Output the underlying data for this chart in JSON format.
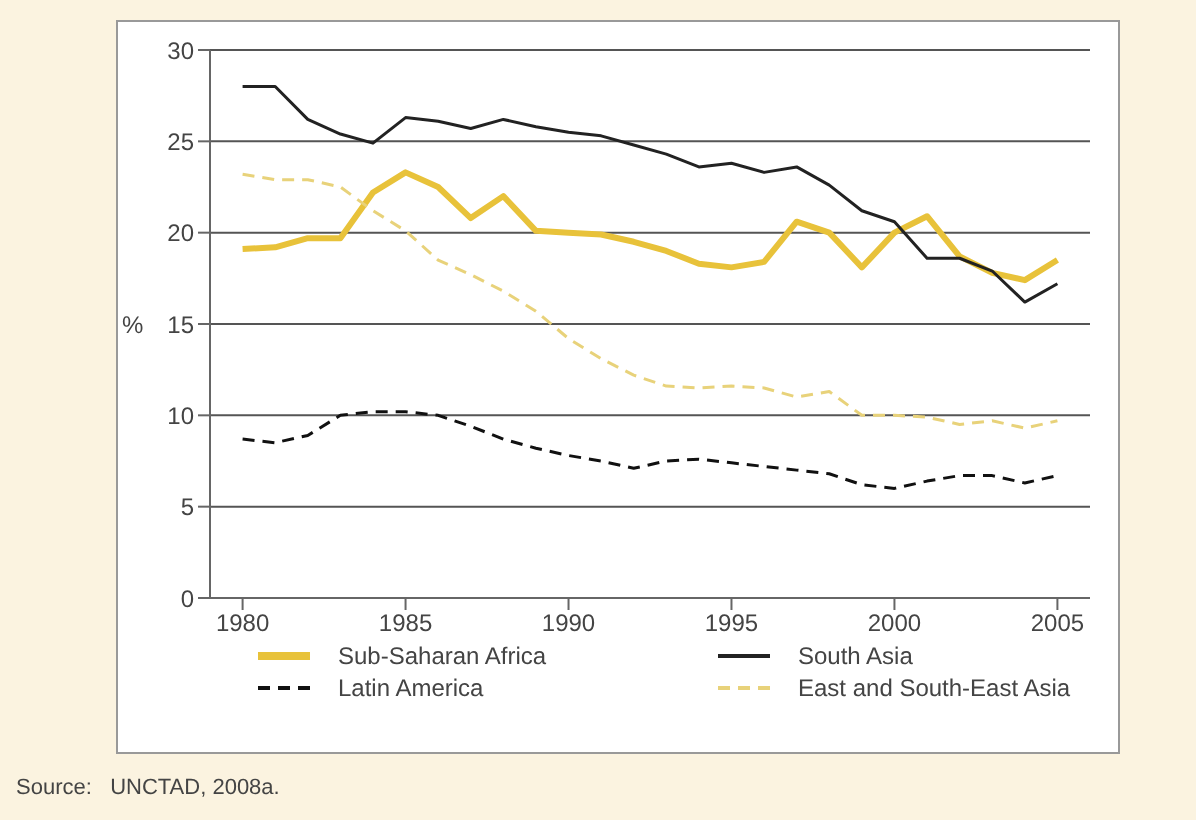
{
  "chart_data": {
    "type": "line",
    "ylabel": "%",
    "x": [
      1980,
      1981,
      1982,
      1983,
      1984,
      1985,
      1986,
      1987,
      1988,
      1989,
      1990,
      1991,
      1992,
      1993,
      1994,
      1995,
      1996,
      1997,
      1998,
      1999,
      2000,
      2001,
      2002,
      2003,
      2004,
      2005
    ],
    "xlim": [
      1979,
      2006
    ],
    "xticks": [
      1980,
      1985,
      1990,
      1995,
      2000,
      2005
    ],
    "ylim": [
      0,
      30
    ],
    "yticks": [
      0,
      5,
      10,
      15,
      20,
      25,
      30
    ],
    "grid": "y",
    "legend": "bottom",
    "marker": "none",
    "series": [
      {
        "name": "Sub-Saharan Africa",
        "color": "#e8c23a",
        "line_style": "solid",
        "values": [
          19.1,
          19.2,
          19.7,
          19.7,
          22.2,
          23.3,
          22.5,
          20.8,
          22.0,
          20.1,
          20.0,
          19.9,
          19.5,
          19.0,
          18.3,
          18.1,
          18.4,
          20.6,
          20.0,
          18.1,
          20.0,
          20.9,
          18.7,
          17.8,
          17.4,
          18.5
        ]
      },
      {
        "name": "South Asia",
        "color": "#222222",
        "line_style": "solid",
        "values": [
          28.0,
          28.0,
          26.2,
          25.4,
          24.9,
          26.3,
          26.1,
          25.7,
          26.2,
          25.8,
          25.5,
          25.3,
          24.8,
          24.3,
          23.6,
          23.8,
          23.3,
          23.6,
          22.6,
          21.2,
          20.6,
          18.6,
          18.6,
          17.9,
          16.2,
          17.2
        ]
      },
      {
        "name": "Latin America",
        "color": "#111111",
        "line_style": "dashed",
        "values": [
          8.7,
          8.5,
          8.9,
          10.0,
          10.2,
          10.2,
          10.0,
          9.4,
          8.7,
          8.2,
          7.8,
          7.5,
          7.1,
          7.5,
          7.6,
          7.4,
          7.2,
          7.0,
          6.8,
          6.2,
          6.0,
          6.4,
          6.7,
          6.7,
          6.3,
          6.7
        ]
      },
      {
        "name": "East and South-East Asia",
        "color": "#e8d27a",
        "line_style": "dashed",
        "values": [
          23.2,
          22.9,
          22.9,
          22.5,
          21.2,
          20.1,
          18.5,
          17.7,
          16.8,
          15.7,
          14.2,
          13.1,
          12.2,
          11.6,
          11.5,
          11.6,
          11.5,
          11.0,
          11.3,
          10.0,
          10.0,
          9.9,
          9.5,
          9.7,
          9.3,
          9.7
        ]
      }
    ],
    "annotations": [
      "Source:   UNCTAD, 2008a."
    ]
  }
}
